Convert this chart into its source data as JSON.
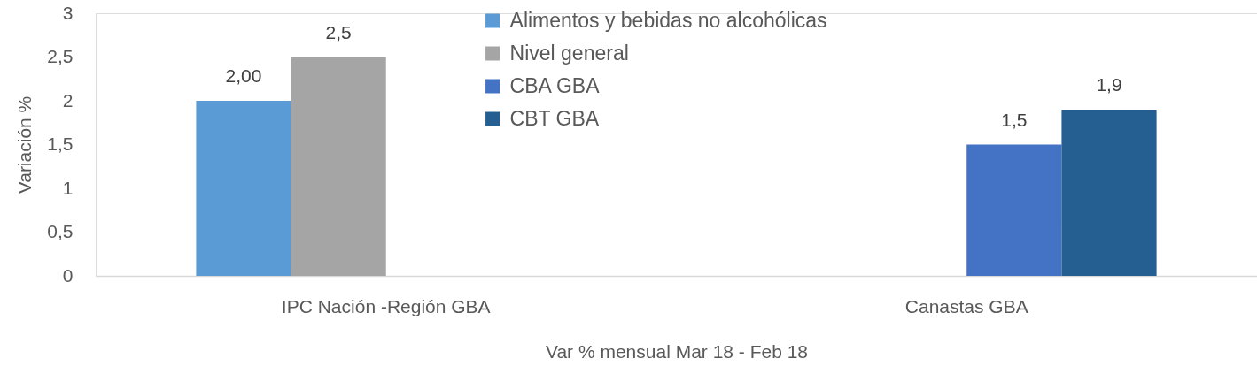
{
  "chart_data": {
    "type": "bar",
    "categories": [
      "IPC Nación -Región GBA",
      "Canastas GBA"
    ],
    "series": [
      {
        "name": "Alimentos y bebidas no alcohólicas",
        "color": "#5b9bd5",
        "values": [
          2.0,
          null
        ],
        "value_labels": [
          "2,00",
          null
        ]
      },
      {
        "name": "Nivel general",
        "color": "#a5a5a5",
        "values": [
          2.5,
          null
        ],
        "value_labels": [
          "2,5",
          null
        ]
      },
      {
        "name": "CBA GBA",
        "color": "#4472c4",
        "values": [
          null,
          1.5
        ],
        "value_labels": [
          null,
          "1,5"
        ]
      },
      {
        "name": "CBT GBA",
        "color": "#255e91",
        "values": [
          null,
          1.9
        ],
        "value_labels": [
          null,
          "1,9"
        ]
      }
    ],
    "xlabel": "Var %  mensual Mar 18 - Feb 18",
    "ylabel": "Variación %",
    "ylim": [
      0,
      3
    ],
    "yticks": [
      0,
      {
        "value": 0.5,
        "label": "0,5"
      },
      1,
      {
        "value": 1.5,
        "label": "1,5"
      },
      2,
      {
        "value": 2.5,
        "label": "2,5"
      },
      3
    ],
    "grid": false,
    "legend": "top"
  }
}
